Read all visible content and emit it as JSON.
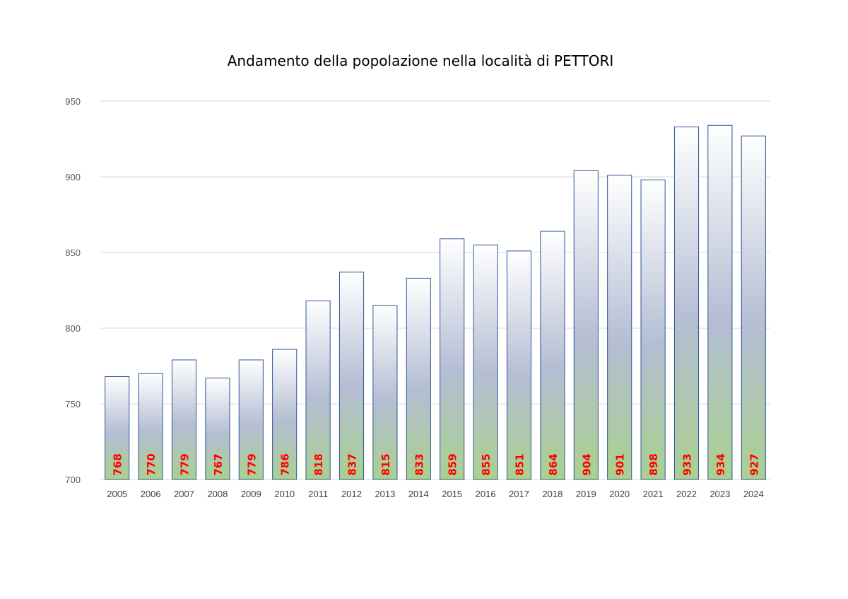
{
  "chart_data": {
    "type": "bar",
    "title": "Andamento della popolazione nella località di PETTORI",
    "xlabel": "",
    "ylabel": "",
    "categories": [
      "2005",
      "2006",
      "2007",
      "2008",
      "2009",
      "2010",
      "2011",
      "2012",
      "2013",
      "2014",
      "2015",
      "2016",
      "2017",
      "2018",
      "2019",
      "2020",
      "2021",
      "2022",
      "2023",
      "2024"
    ],
    "values": [
      768,
      770,
      779,
      767,
      779,
      786,
      818,
      837,
      815,
      833,
      859,
      855,
      851,
      864,
      904,
      901,
      898,
      933,
      934,
      927
    ],
    "data_labels": [
      "768",
      "770",
      "779",
      "767",
      "779",
      "786",
      "818",
      "837",
      "815",
      "833",
      "859",
      "855",
      "851",
      "864",
      "904",
      "901",
      "898",
      "933",
      "934",
      "927"
    ],
    "ylim": [
      700,
      950
    ],
    "yticks": [
      "700",
      "750",
      "800",
      "850",
      "900",
      "950"
    ],
    "grid": true,
    "legend": "none",
    "colors": {
      "bar_top": "#ffffff",
      "bar_middle": "#b4bdd3",
      "bar_bottom": "#a9d18e",
      "bar_border": "#2f5597",
      "data_label": "#ff0000",
      "gridline": "#d9d9d9"
    }
  }
}
